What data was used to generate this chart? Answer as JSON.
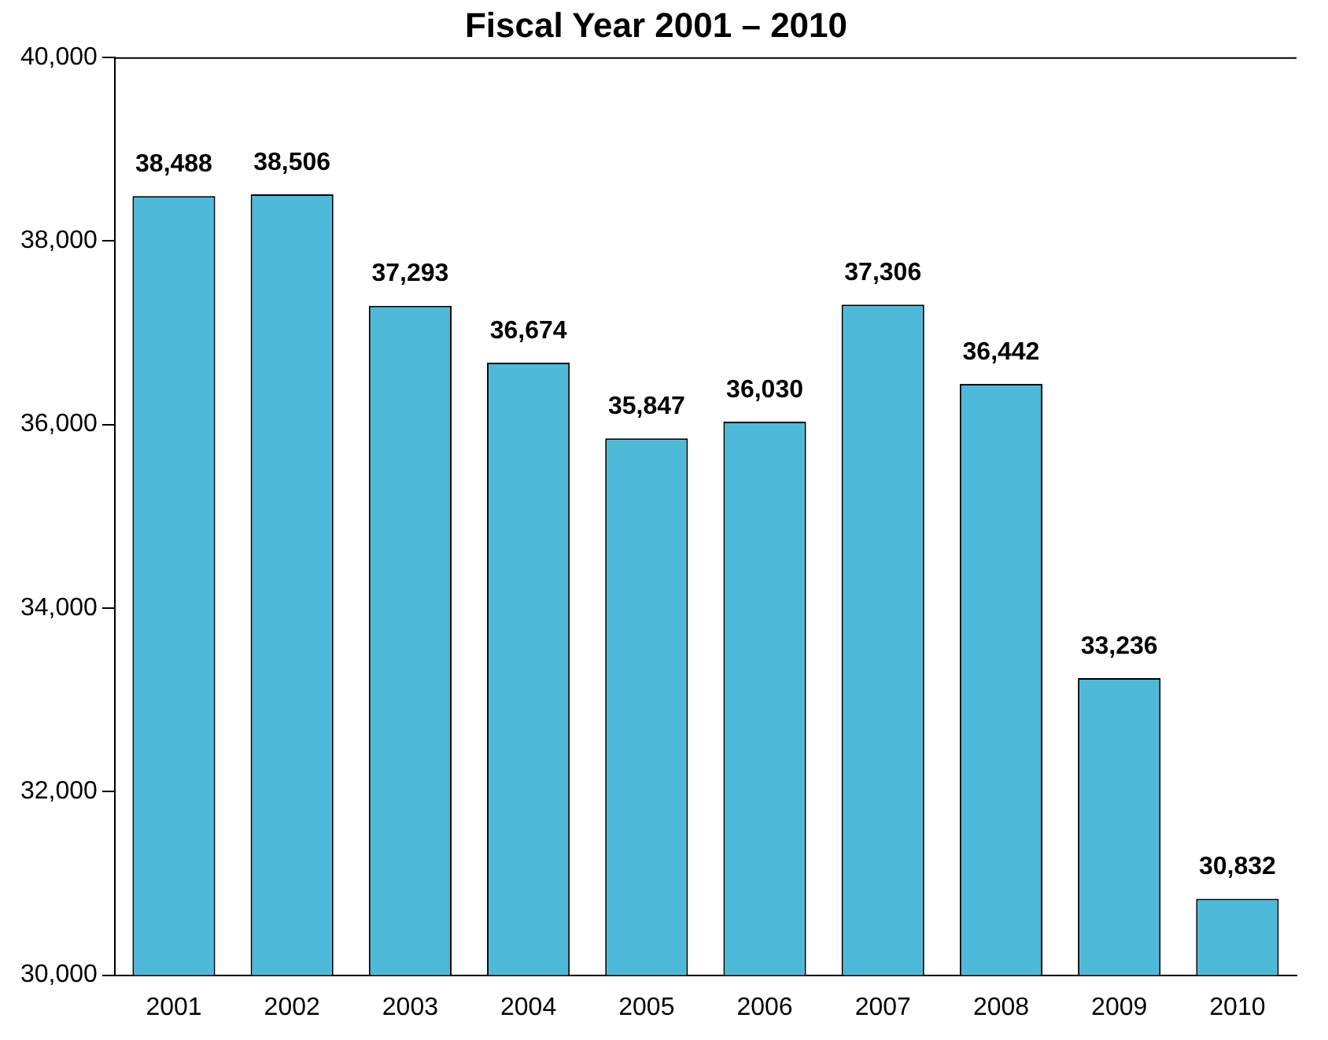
{
  "chart_data": {
    "type": "bar",
    "title": "Fiscal Year 2001 – 2010",
    "categories": [
      "2001",
      "2002",
      "2003",
      "2004",
      "2005",
      "2006",
      "2007",
      "2008",
      "2009",
      "2010"
    ],
    "values": [
      38488,
      38506,
      37293,
      36674,
      35847,
      36030,
      37306,
      36442,
      33236,
      30832
    ],
    "color": "#4fb9d9",
    "ylim": [
      30000,
      40000
    ],
    "yticks": [
      {
        "value": 30000,
        "label": "30,000"
      },
      {
        "value": 32000,
        "label": "32,000"
      },
      {
        "value": 34000,
        "label": "34,000"
      },
      {
        "value": 36000,
        "label": "36,000"
      },
      {
        "value": 38000,
        "label": "38,000"
      },
      {
        "value": 40000,
        "label": "40,000"
      }
    ],
    "value_labels": [
      "38,488",
      "38,506",
      "37,293",
      "36,674",
      "35,847",
      "36,030",
      "37,306",
      "36,442",
      "33,236",
      "30,832"
    ],
    "grid": false,
    "legend": false
  }
}
